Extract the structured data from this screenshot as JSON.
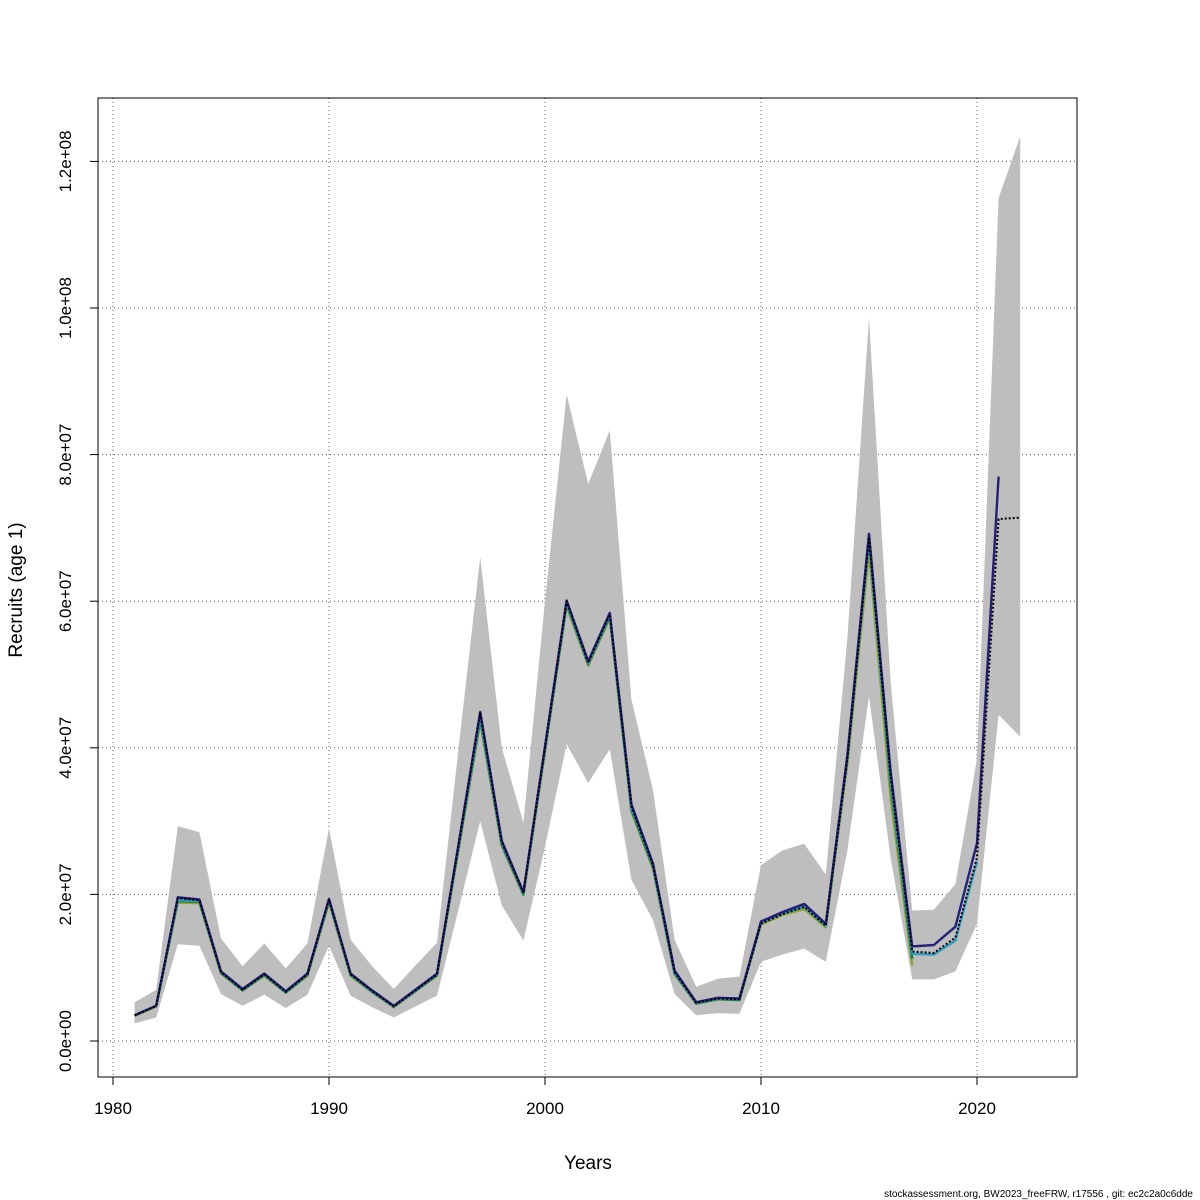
{
  "chart_data": {
    "type": "line",
    "title": "",
    "xlabel": "Years",
    "ylabel": "Recruits (age 1)",
    "footer": "stockassessment.org, BW2023_freeFRW, r17556 , git: ec2c2a0c6dde",
    "xlim": [
      1980,
      2024
    ],
    "ylim": [
      0,
      120000000
    ],
    "x_ticks": [
      1980,
      1990,
      2000,
      2010,
      2020
    ],
    "x_tick_labels": [
      "1980",
      "1990",
      "2000",
      "2010",
      "2020"
    ],
    "y_ticks": [
      0,
      20000000,
      40000000,
      60000000,
      80000000,
      100000000,
      120000000
    ],
    "y_tick_labels": [
      "0.0e+00",
      "2.0e+07",
      "4.0e+07",
      "6.0e+07",
      "8.0e+07",
      "1.0e+08",
      "1.2e+08"
    ],
    "grid": true,
    "colors": {
      "band": "#bebebe",
      "main": "#000000",
      "retro_1": "#241f7a",
      "retro_2": "#2c9bbf",
      "retro_3": "#117a3c",
      "retro_4": "#8aa32a",
      "grid": "#555555"
    },
    "confidence_band": {
      "x": [
        1981,
        1982,
        1983,
        1984,
        1985,
        1986,
        1987,
        1988,
        1989,
        1990,
        1991,
        1992,
        1993,
        1994,
        1995,
        1996,
        1997,
        1998,
        1999,
        2000,
        2001,
        2002,
        2003,
        2004,
        2005,
        2006,
        2007,
        2008,
        2009,
        2010,
        2011,
        2012,
        2013,
        2014,
        2015,
        2016,
        2017,
        2018,
        2019,
        2020,
        2021,
        2022
      ],
      "lower": [
        2400000,
        3200000,
        13200000,
        13000000,
        6400000,
        4800000,
        6300000,
        4500000,
        6300000,
        13000000,
        6200000,
        4600000,
        3200000,
        4700000,
        6200000,
        18000000,
        30000000,
        18500000,
        13700000,
        26500000,
        40500000,
        35200000,
        39800000,
        22000000,
        16500000,
        6400000,
        3500000,
        3800000,
        3700000,
        10800000,
        11800000,
        12600000,
        10800000,
        26000000,
        47000000,
        25000000,
        8400000,
        8400000,
        9500000,
        16000000,
        44500000,
        41500000
      ],
      "upper": [
        5300000,
        7000000,
        29300000,
        28500000,
        14000000,
        10200000,
        13300000,
        9900000,
        13300000,
        29000000,
        13800000,
        10200000,
        7100000,
        10300000,
        13400000,
        40000000,
        66000000,
        40000000,
        29800000,
        60000000,
        88200000,
        76000000,
        83300000,
        46600000,
        34200000,
        13800000,
        7400000,
        8500000,
        8800000,
        24000000,
        26000000,
        26900000,
        22700000,
        55000000,
        98600000,
        49000000,
        17800000,
        17900000,
        21400000,
        38500000,
        115000000,
        123400000
      ]
    },
    "series": [
      {
        "x": [
          1981,
          1982,
          1983,
          1984,
          1985,
          1986,
          1987,
          1988,
          1989,
          1990,
          1991,
          1992,
          1993,
          1994,
          1995,
          1996,
          1997,
          1998,
          1999,
          2000,
          2001,
          2002,
          2003,
          2004,
          2005,
          2006,
          2007,
          2008,
          2009,
          2010,
          2011,
          2012,
          2013,
          2014,
          2015,
          2016,
          2017,
          2018,
          2019,
          2020,
          2021,
          2022
        ],
        "values": [
          3500000,
          4800000,
          19500000,
          19200000,
          9400000,
          7000000,
          9100000,
          6700000,
          9100000,
          19300000,
          9100000,
          6800000,
          4700000,
          6900000,
          9100000,
          26700000,
          44700000,
          27100000,
          20200000,
          40000000,
          60000000,
          51600000,
          58200000,
          32000000,
          24000000,
          9400000,
          5200000,
          5800000,
          5700000,
          16000000,
          17300000,
          18300000,
          15700000,
          38500000,
          68500000,
          36000000,
          12200000,
          12000000,
          14100000,
          25000000,
          71200000,
          71400000
        ],
        "style": "dashed",
        "color": "#000000"
      },
      {
        "x": [
          1981,
          1982,
          1983,
          1984,
          1985,
          1986,
          1987,
          1988,
          1989,
          1990,
          1991,
          1992,
          1993,
          1994,
          1995,
          1996,
          1997,
          1998,
          1999,
          2000,
          2001,
          2002,
          2003,
          2004,
          2005,
          2006,
          2007,
          2008,
          2009,
          2010,
          2011,
          2012,
          2013,
          2014,
          2015,
          2016,
          2017,
          2018,
          2019,
          2020,
          2021
        ],
        "values": [
          3500000,
          4800000,
          19600000,
          19300000,
          9500000,
          7100000,
          9200000,
          6800000,
          9200000,
          19400000,
          9200000,
          6900000,
          4800000,
          7000000,
          9200000,
          26900000,
          44900000,
          27300000,
          20300000,
          40200000,
          60100000,
          51800000,
          58400000,
          32300000,
          24200000,
          9600000,
          5300000,
          5900000,
          5800000,
          16300000,
          17600000,
          18700000,
          16000000,
          39000000,
          69200000,
          36800000,
          12900000,
          13100000,
          15600000,
          27000000,
          77000000
        ],
        "style": "solid",
        "color": "#241f7a"
      },
      {
        "x": [
          1981,
          1982,
          1983,
          1984,
          1985,
          1986,
          1987,
          1988,
          1989,
          1990,
          1991,
          1992,
          1993,
          1994,
          1995,
          1996,
          1997,
          1998,
          1999,
          2000,
          2001,
          2002,
          2003,
          2004,
          2005,
          2006,
          2007,
          2008,
          2009,
          2010,
          2011,
          2012,
          2013,
          2014,
          2015,
          2016,
          2017,
          2018,
          2019,
          2020
        ],
        "values": [
          3500000,
          4800000,
          19200000,
          19100000,
          9400000,
          7000000,
          9100000,
          6700000,
          9100000,
          19200000,
          9100000,
          6800000,
          4700000,
          6900000,
          9100000,
          26600000,
          44300000,
          27000000,
          20100000,
          39900000,
          59800000,
          51500000,
          58100000,
          31800000,
          23900000,
          9300000,
          5200000,
          5800000,
          5700000,
          16100000,
          17400000,
          18300000,
          15700000,
          38500000,
          68300000,
          35500000,
          11900000,
          11800000,
          13700000,
          24500000
        ],
        "style": "solid",
        "color": "#2c9bbf"
      },
      {
        "x": [
          1981,
          1982,
          1983,
          1984,
          1985,
          1986,
          1987,
          1988,
          1989,
          1990,
          1991,
          1992,
          1993,
          1994,
          1995,
          1996,
          1997,
          1998,
          1999,
          2000,
          2001,
          2002,
          2003,
          2004,
          2005,
          2006,
          2007,
          2008,
          2009,
          2010,
          2011,
          2012,
          2013,
          2014,
          2015,
          2016,
          2017
        ],
        "values": [
          3500000,
          4800000,
          19100000,
          19000000,
          9300000,
          6900000,
          9000000,
          6600000,
          9000000,
          19100000,
          9000000,
          6700000,
          4700000,
          6800000,
          9000000,
          26400000,
          43900000,
          26800000,
          20000000,
          39700000,
          59600000,
          51400000,
          57900000,
          31600000,
          23700000,
          9200000,
          5100000,
          5700000,
          5600000,
          16200000,
          17500000,
          18500000,
          15800000,
          38900000,
          69000000,
          35000000,
          11200000
        ],
        "style": "solid",
        "color": "#117a3c"
      },
      {
        "x": [
          1981,
          1982,
          1983,
          1984,
          1985,
          1986,
          1987,
          1988,
          1989,
          1990,
          1991,
          1992,
          1993,
          1994,
          1995,
          1996,
          1997,
          1998,
          1999,
          2000,
          2001,
          2002,
          2003,
          2004,
          2005,
          2006,
          2007,
          2008,
          2009,
          2010,
          2011,
          2012,
          2013,
          2014,
          2015,
          2016,
          2017
        ],
        "values": [
          3400000,
          4700000,
          18900000,
          18800000,
          9200000,
          6900000,
          8900000,
          6600000,
          8900000,
          18900000,
          8900000,
          6700000,
          4600000,
          6800000,
          8900000,
          26200000,
          43500000,
          26600000,
          19900000,
          39500000,
          59300000,
          51200000,
          57700000,
          31300000,
          23500000,
          9100000,
          5100000,
          5700000,
          5600000,
          15900000,
          17200000,
          18000000,
          15500000,
          37800000,
          66700000,
          33200000,
          10300000
        ],
        "style": "solid",
        "color": "#8aa32a"
      }
    ]
  }
}
